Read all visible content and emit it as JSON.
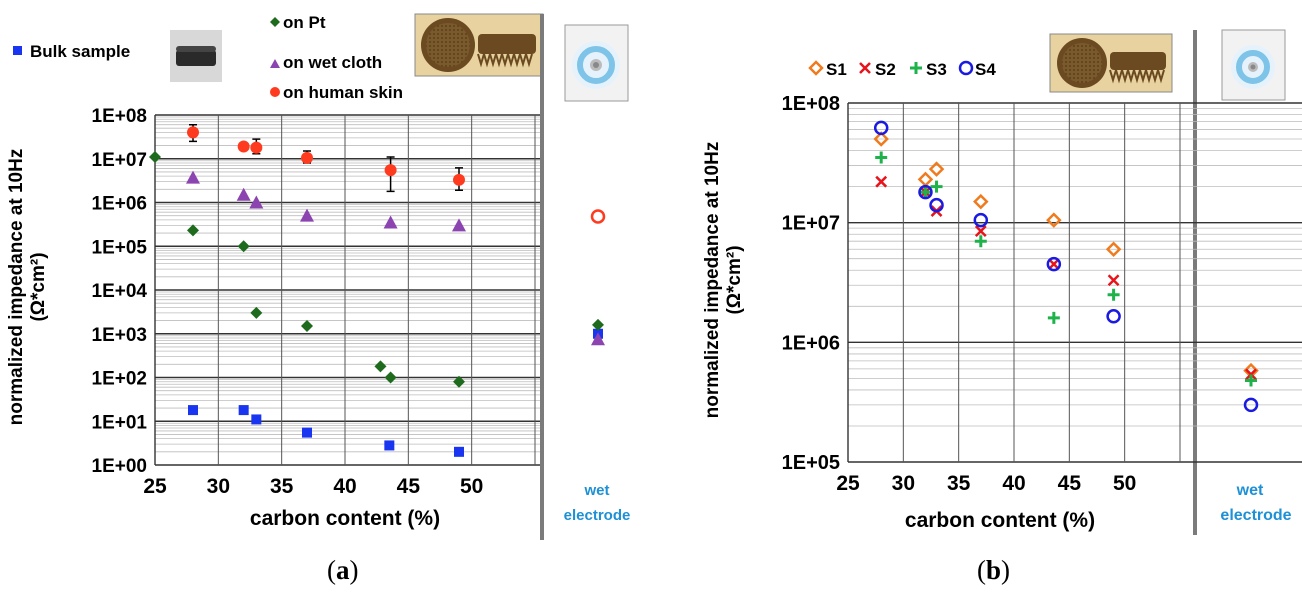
{
  "chart_data": [
    {
      "panel_label": "a",
      "type": "scatter",
      "y_scale": "log",
      "ylim": [
        1,
        100000000
      ],
      "xlim": [
        25,
        55
      ],
      "xlabel": "carbon content (%)",
      "ylabel": "normalized impedance at 10Hz",
      "ylabel_units": "(Ω*cm²)",
      "x_ticks": [
        "25",
        "30",
        "35",
        "40",
        "45",
        "50"
      ],
      "y_ticks": [
        "1E+00",
        "1E+01",
        "1E+02",
        "1E+03",
        "1E+04",
        "1E+05",
        "1E+06",
        "1E+07",
        "1E+08"
      ],
      "grid": true,
      "legend_placement": "top",
      "wet_label_1": "wet",
      "wet_label_2": "electrode",
      "series": [
        {
          "name": "Bulk sample",
          "marker": "square",
          "color": "#1a35f0",
          "x": [
            28,
            32,
            33,
            37,
            43.5,
            49
          ],
          "y": [
            18,
            18,
            11,
            5.5,
            2.8,
            2
          ],
          "wet_y": 1000
        },
        {
          "name": "on Pt",
          "marker": "diamond",
          "color": "#1e6b1e",
          "x": [
            25,
            28,
            32,
            33,
            37,
            42.8,
            43.6,
            49
          ],
          "y": [
            11000000,
            230000,
            100000,
            3000,
            1500,
            180,
            100,
            80
          ],
          "wet_y": 1600
        },
        {
          "name": "on wet cloth",
          "marker": "triangle",
          "color": "#8b44b0",
          "x": [
            28,
            32,
            33,
            37,
            43.6,
            49
          ],
          "y": [
            3700000,
            1500000,
            1000000,
            500000,
            350000,
            300000
          ],
          "wet_y": 750
        },
        {
          "name": "on human skin",
          "marker": "circle",
          "color": "#ff3b1f",
          "x": [
            28,
            32,
            33,
            37,
            43.6,
            49
          ],
          "y": [
            40000000,
            19000000,
            18000000,
            10500000,
            5500000,
            3300000
          ],
          "err": [
            [
              25000000,
              60000000
            ],
            [
              17000000,
              21000000
            ],
            [
              13000000,
              28000000
            ],
            [
              8000000,
              15000000
            ],
            [
              1800000,
              11000000
            ],
            [
              1900000,
              6200000
            ]
          ],
          "wet_y": 480000,
          "wet_marker": "open-circle"
        }
      ]
    },
    {
      "panel_label": "b",
      "type": "scatter",
      "y_scale": "log",
      "ylim": [
        100000,
        100000000
      ],
      "xlim": [
        25,
        55
      ],
      "xlabel": "carbon content (%)",
      "ylabel": "normalized impedance at 10Hz",
      "ylabel_units": "(Ω*cm²)",
      "x_ticks": [
        "25",
        "30",
        "35",
        "40",
        "45",
        "50"
      ],
      "y_ticks": [
        "1E+05",
        "1E+06",
        "1E+07",
        "1E+08"
      ],
      "grid": true,
      "legend_placement": "top",
      "wet_label_1": "wet",
      "wet_label_2": "electrode",
      "series": [
        {
          "name": "S1",
          "marker": "open-diamond",
          "color": "#f07b1e",
          "x": [
            28,
            32,
            33,
            37,
            43.6,
            49
          ],
          "y": [
            50000000,
            23000000,
            28000000,
            15000000,
            10500000,
            6000000
          ],
          "wet_y": 580000
        },
        {
          "name": "S2",
          "marker": "x",
          "color": "#e8141b",
          "x": [
            28,
            32,
            33,
            37,
            43.6,
            49
          ],
          "y": [
            22000000,
            18000000,
            12500000,
            8500000,
            4500000,
            3300000
          ],
          "wet_y": 540000
        },
        {
          "name": "S3",
          "marker": "plus",
          "color": "#1db34a",
          "x": [
            28,
            32,
            33,
            37,
            43.6,
            49
          ],
          "y": [
            35000000,
            18000000,
            20000000,
            7000000,
            1600000,
            2500000
          ],
          "wet_y": 480000
        },
        {
          "name": "S4",
          "marker": "open-circle",
          "color": "#1a1ae0",
          "x": [
            28,
            32,
            33,
            37,
            43.6,
            49
          ],
          "y": [
            62000000,
            18000000,
            14000000,
            10500000,
            4500000,
            1650000
          ],
          "wet_y": 300000
        }
      ]
    }
  ]
}
